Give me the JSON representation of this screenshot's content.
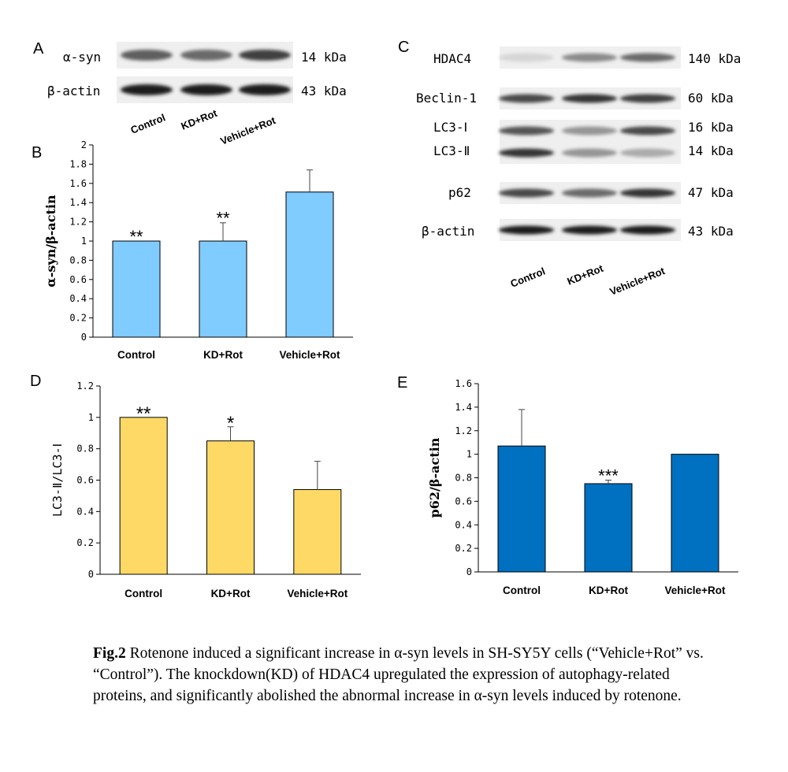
{
  "panel_letters": [
    "A",
    "B",
    "C",
    "D",
    "E"
  ],
  "groups": [
    "Control",
    "KD+Rot",
    "Vehicle+Rot"
  ],
  "blot_a": {
    "rows": [
      {
        "label": "α-syn",
        "size": "14 kDa",
        "intensity": [
          0.65,
          0.6,
          0.8
        ]
      },
      {
        "label": "β-actin",
        "size": "43 kDa",
        "intensity": [
          0.95,
          0.95,
          0.95
        ]
      }
    ]
  },
  "blot_c": {
    "rows": [
      {
        "label": "HDAC4",
        "size": "140 kDa",
        "intensity": [
          0.1,
          0.45,
          0.6
        ]
      },
      {
        "label": "Beclin-1",
        "size": "60 kDa",
        "intensity": [
          0.75,
          0.85,
          0.8
        ]
      },
      {
        "label": "LC3-Ⅰ",
        "size": "16 kDa",
        "intensity": [
          0.7,
          0.4,
          0.75
        ]
      },
      {
        "label": "LC3-Ⅱ",
        "size": "14 kDa",
        "intensity": [
          0.85,
          0.4,
          0.3
        ]
      },
      {
        "label": "p62",
        "size": "47 kDa",
        "intensity": [
          0.75,
          0.6,
          0.85
        ]
      },
      {
        "label": "β-actin",
        "size": "43 kDa",
        "intensity": [
          0.95,
          0.95,
          0.95
        ]
      }
    ]
  },
  "chart_data": [
    {
      "type": "bar",
      "panel": "B",
      "categories": [
        "Control",
        "KD+Rot",
        "Vehicle+Rot"
      ],
      "values": [
        1.0,
        1.0,
        1.51
      ],
      "errors": [
        0.0,
        0.19,
        0.23
      ],
      "annotations": [
        "**",
        "**",
        ""
      ],
      "ylabel": "α-syn/β-actin",
      "ylim": [
        0,
        2
      ],
      "yticks": [
        "0",
        "0.2",
        "0.4",
        "0.6",
        "0.8",
        "1",
        "1.2",
        "1.4",
        "1.6",
        "1.8",
        "2"
      ],
      "color": "#80cbff"
    },
    {
      "type": "bar",
      "panel": "D",
      "categories": [
        "Control",
        "KD+Rot",
        "Vehicle+Rot"
      ],
      "values": [
        1.0,
        0.85,
        0.54
      ],
      "errors": [
        0.0,
        0.09,
        0.18
      ],
      "annotations": [
        "**",
        "*",
        ""
      ],
      "ylabel": "LC3-Ⅱ/LC3-Ⅰ",
      "ylim": [
        0,
        1.2
      ],
      "yticks": [
        "0",
        "0.2",
        "0.4",
        "0.6",
        "0.8",
        "1",
        "1.2"
      ],
      "color": "#ffd966"
    },
    {
      "type": "bar",
      "panel": "E",
      "categories": [
        "Control",
        "KD+Rot",
        "Vehicle+Rot"
      ],
      "values": [
        1.07,
        0.75,
        1.0
      ],
      "errors": [
        0.31,
        0.03,
        0.0
      ],
      "annotations": [
        "",
        "***",
        ""
      ],
      "ylabel": "p62/β-actin",
      "ylim": [
        0,
        1.6
      ],
      "yticks": [
        "0",
        "0.2",
        "0.4",
        "0.6",
        "0.8",
        "1",
        "1.2",
        "1.4",
        "1.6"
      ],
      "color": "#0070c0"
    }
  ],
  "caption": {
    "lead": "Fig.2",
    "text": " Rotenone induced a significant increase in α-syn levels in SH-SY5Y cells (“Vehicle+Rot” vs. “Control”). The knockdown(KD) of HDAC4 upregulated the expression of autophagy-related proteins, and significantly abolished the abnormal increase in α-syn levels induced by rotenone."
  }
}
